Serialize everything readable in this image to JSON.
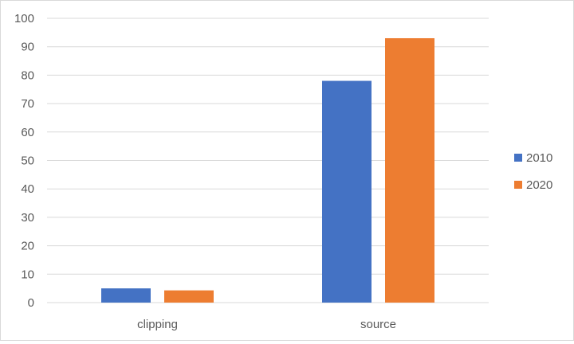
{
  "chart_data": {
    "type": "bar",
    "categories": [
      "clipping",
      "source"
    ],
    "series": [
      {
        "name": "2010",
        "values": [
          5,
          78
        ],
        "color": "#4472c4"
      },
      {
        "name": "2020",
        "values": [
          4.3,
          93
        ],
        "color": "#ed7d31"
      }
    ],
    "title": "",
    "xlabel": "",
    "ylabel": "",
    "ylim": [
      0,
      100
    ],
    "yticks": [
      "0",
      "10",
      "20",
      "30",
      "40",
      "50",
      "60",
      "70",
      "80",
      "90",
      "100"
    ],
    "grid": true,
    "legend_position": "right",
    "gridline_color": "#d9d9d9"
  }
}
